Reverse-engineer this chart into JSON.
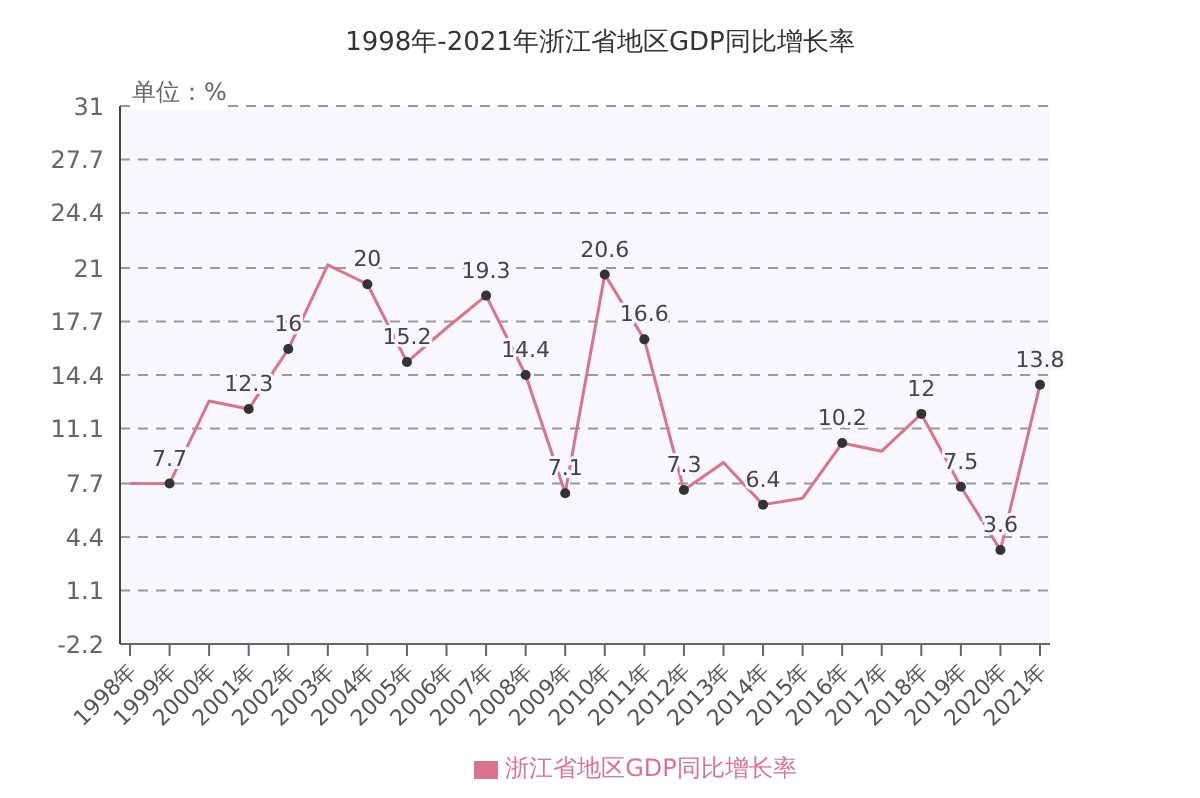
{
  "chart_data": {
    "type": "line",
    "title": "1998年-2021年浙江省地区GDP同比增长率",
    "ylabel": "单位：%",
    "categories": [
      "1998年",
      "1999年",
      "2000年",
      "2001年",
      "2002年",
      "2003年",
      "2004年",
      "2005年",
      "2006年",
      "2007年",
      "2008年",
      "2009年",
      "2010年",
      "2011年",
      "2012年",
      "2013年",
      "2014年",
      "2015年",
      "2016年",
      "2017年",
      "2018年",
      "2019年",
      "2020年",
      "2021年"
    ],
    "series": [
      {
        "name": "浙江省地区GDP同比增长率",
        "color": "#d9738f",
        "values": [
          7.7,
          7.7,
          12.8,
          12.3,
          16,
          21.2,
          20,
          15.2,
          17.3,
          19.3,
          14.4,
          7.1,
          20.6,
          16.6,
          7.3,
          9.0,
          6.4,
          6.8,
          10.2,
          9.7,
          12,
          7.5,
          3.6,
          13.8
        ],
        "value_labels": [
          null,
          "7.7",
          null,
          "12.3",
          "16",
          null,
          "20",
          "15.2",
          null,
          "19.3",
          "14.4",
          "7.1",
          "20.6",
          "16.6",
          "7.3",
          null,
          "6.4",
          null,
          "10.2",
          null,
          "12",
          "7.5",
          "3.6",
          "13.8"
        ]
      }
    ],
    "ylim": [
      -2.2,
      31
    ],
    "yticks": [
      -2.2,
      1.1,
      4.4,
      7.7,
      11.1,
      14.4,
      17.7,
      21,
      24.4,
      27.7,
      31
    ],
    "grid": "y",
    "legend": "bottom",
    "marker": "circle",
    "line_style": "solid"
  }
}
